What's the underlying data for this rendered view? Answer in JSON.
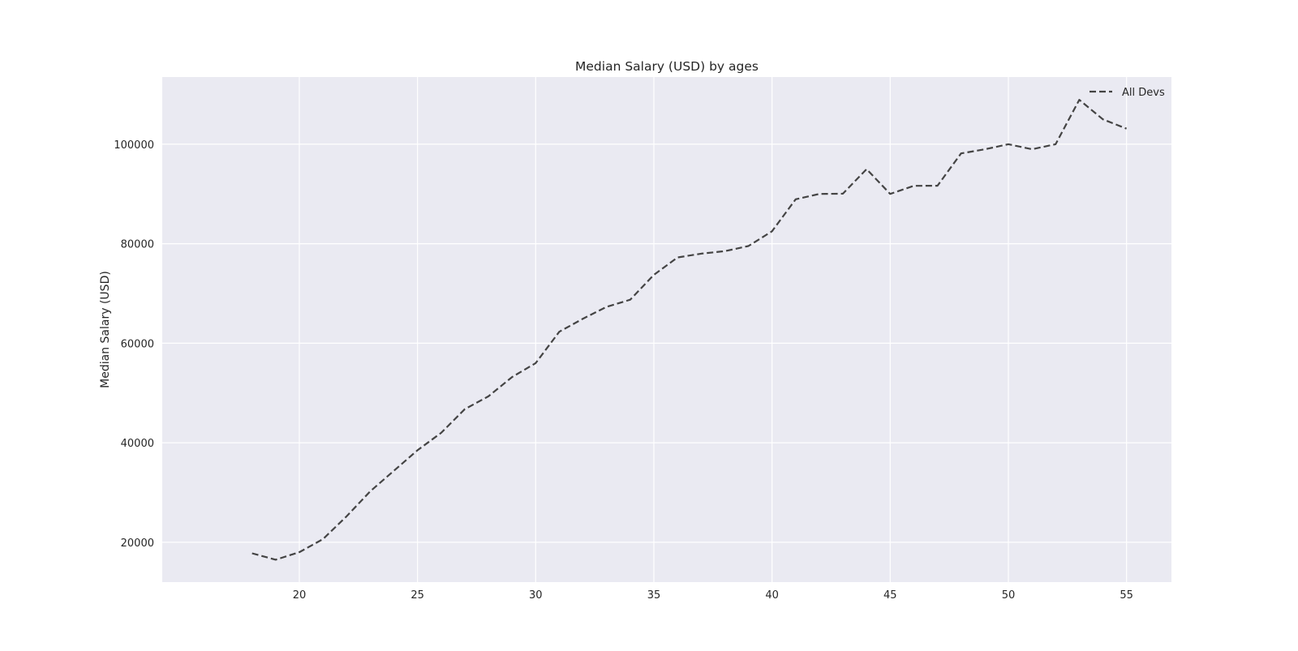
{
  "chart_data": {
    "type": "line",
    "title": "Median Salary (USD) by ages",
    "xlabel": "",
    "ylabel": "Median Salary (USD)",
    "xlim": [
      14.2,
      56.9
    ],
    "ylim": [
      12000,
      113500
    ],
    "x_ticks": [
      20,
      25,
      30,
      35,
      40,
      45,
      50,
      55
    ],
    "y_ticks": [
      20000,
      40000,
      60000,
      80000,
      100000
    ],
    "grid": true,
    "legend_position": "upper right",
    "style": "seaborn",
    "colors": {
      "background": "#eaeaf2",
      "grid": "#ffffff",
      "line": "#444444",
      "text": "#262626"
    },
    "series": [
      {
        "name": "All Devs",
        "linestyle": "dashed",
        "x": [
          18,
          19,
          20,
          21,
          22,
          23,
          24,
          25,
          26,
          27,
          28,
          29,
          30,
          31,
          32,
          33,
          34,
          35,
          36,
          37,
          38,
          39,
          40,
          41,
          42,
          43,
          44,
          45,
          46,
          47,
          48,
          49,
          50,
          51,
          52,
          53,
          54,
          55
        ],
        "values": [
          17784,
          16500,
          18012,
          20628,
          25206,
          30252,
          34368,
          38496,
          42000,
          46752,
          49320,
          53200,
          56000,
          62316,
          64928,
          67317,
          68748,
          73752,
          77232,
          78000,
          78508,
          79536,
          82488,
          88935,
          90000,
          90056,
          95000,
          90000,
          91633,
          91660,
          98150,
          98964,
          100000,
          98988,
          100000,
          108923,
          105000,
          103117
        ]
      }
    ]
  }
}
